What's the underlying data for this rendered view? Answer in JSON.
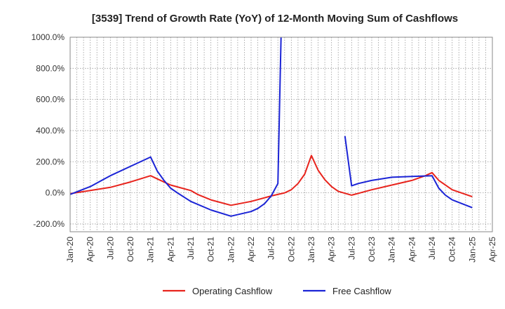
{
  "chart_data": {
    "type": "line",
    "title": "[3539]  Trend of Growth Rate (YoY) of 12-Month Moving Sum of Cashflows",
    "xlabel": "",
    "ylabel": "",
    "ylim": [
      -250,
      1000
    ],
    "y_ticks": [
      -200,
      0,
      200,
      400,
      600,
      800,
      1000
    ],
    "y_tick_labels": [
      "-200.0%",
      "0.0%",
      "200.0%",
      "400.0%",
      "600.0%",
      "800.0%",
      "1000.0%"
    ],
    "x_range": [
      "2020-01",
      "2025-04"
    ],
    "x_ticks": [
      "2020-01",
      "2020-04",
      "2020-07",
      "2020-10",
      "2021-01",
      "2021-04",
      "2021-07",
      "2021-10",
      "2022-01",
      "2022-04",
      "2022-07",
      "2022-10",
      "2023-01",
      "2023-04",
      "2023-07",
      "2023-10",
      "2024-01",
      "2024-04",
      "2024-07",
      "2024-10",
      "2025-01",
      "2025-04"
    ],
    "x_tick_labels": [
      "Jan-20",
      "Apr-20",
      "Jul-20",
      "Oct-20",
      "Jan-21",
      "Apr-21",
      "Jul-21",
      "Oct-21",
      "Jan-22",
      "Apr-22",
      "Jul-22",
      "Oct-22",
      "Jan-23",
      "Apr-23",
      "Jul-23",
      "Oct-23",
      "Jan-24",
      "Apr-24",
      "Jul-24",
      "Oct-24",
      "Jan-25",
      "Apr-25"
    ],
    "grid": true,
    "legend_position": "bottom",
    "series": [
      {
        "name": "Operating Cashflow",
        "color": "#e8241d",
        "points": [
          [
            "2020-01",
            -5
          ],
          [
            "2020-04",
            15
          ],
          [
            "2020-07",
            35
          ],
          [
            "2020-10",
            70
          ],
          [
            "2021-01",
            110
          ],
          [
            "2021-02",
            90
          ],
          [
            "2021-04",
            50
          ],
          [
            "2021-07",
            15
          ],
          [
            "2021-08",
            -10
          ],
          [
            "2021-10",
            -45
          ],
          [
            "2022-01",
            -80
          ],
          [
            "2022-04",
            -55
          ],
          [
            "2022-07",
            -20
          ],
          [
            "2022-09",
            0
          ],
          [
            "2022-10",
            20
          ],
          [
            "2022-11",
            60
          ],
          [
            "2022-12",
            120
          ],
          [
            "2023-01",
            240
          ],
          [
            "2023-02",
            145
          ],
          [
            "2023-03",
            85
          ],
          [
            "2023-04",
            40
          ],
          [
            "2023-05",
            10
          ],
          [
            "2023-07",
            -15
          ],
          [
            "2023-10",
            20
          ],
          [
            "2024-01",
            50
          ],
          [
            "2024-04",
            80
          ],
          [
            "2024-06",
            110
          ],
          [
            "2024-07",
            130
          ],
          [
            "2024-08",
            80
          ],
          [
            "2024-10",
            20
          ],
          [
            "2025-01",
            -25
          ]
        ]
      },
      {
        "name": "Free Cashflow",
        "color": "#1b24d6",
        "segments": [
          [
            [
              "2020-01",
              -10
            ],
            [
              "2020-04",
              40
            ],
            [
              "2020-07",
              110
            ],
            [
              "2020-10",
              170
            ],
            [
              "2021-01",
              230
            ],
            [
              "2021-02",
              140
            ],
            [
              "2021-03",
              80
            ],
            [
              "2021-04",
              30
            ],
            [
              "2021-05",
              0
            ],
            [
              "2021-07",
              -55
            ],
            [
              "2021-10",
              -110
            ],
            [
              "2022-01",
              -150
            ],
            [
              "2022-04",
              -120
            ],
            [
              "2022-05",
              -100
            ],
            [
              "2022-06",
              -70
            ],
            [
              "2022-07",
              -20
            ],
            [
              "2022-08",
              60
            ],
            [
              "2022-08-15",
              1000
            ]
          ],
          [
            [
              "2023-06",
              365
            ],
            [
              "2023-07",
              45
            ],
            [
              "2023-08",
              60
            ],
            [
              "2023-10",
              80
            ],
            [
              "2024-01",
              100
            ],
            [
              "2024-04",
              105
            ],
            [
              "2024-07",
              110
            ],
            [
              "2024-08",
              30
            ],
            [
              "2024-09",
              -15
            ],
            [
              "2024-10",
              -45
            ],
            [
              "2025-01",
              -95
            ]
          ]
        ]
      }
    ]
  }
}
